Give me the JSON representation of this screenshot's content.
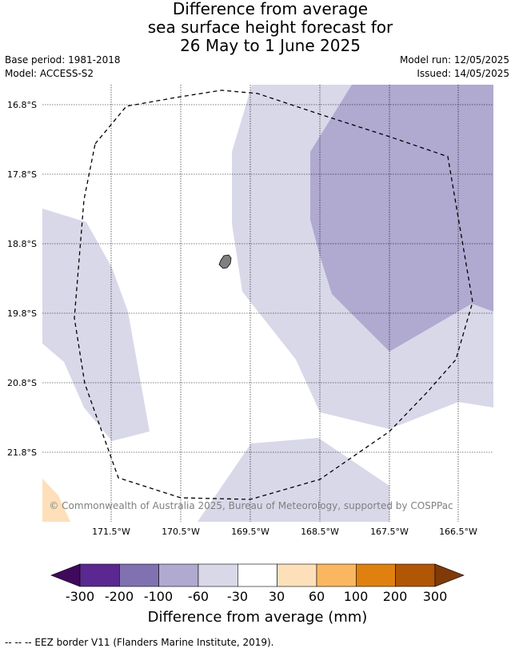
{
  "title": {
    "line1": "Difference from average",
    "line2": "sea surface height forecast for",
    "line3": "26 May to 1 June 2025"
  },
  "meta": {
    "base_period": "Base period: 1981-2018",
    "model": "Model: ACCESS-S2",
    "model_run": "Model run: 12/05/2025",
    "issued": "Issued: 14/05/2025"
  },
  "map": {
    "lat_labels": [
      "16.8°S",
      "17.8°S",
      "18.8°S",
      "19.8°S",
      "20.8°S",
      "21.8°S"
    ],
    "lon_labels": [
      "171.5°W",
      "170.5°W",
      "169.5°W",
      "168.5°W",
      "167.5°W",
      "166.5°W"
    ],
    "copyright": "© Commonwealth of Australia 2025, Bureau of Meteorology, supported by COSPPac",
    "colors": {
      "lt_minus30": "#d8d8e9",
      "lt_minus60": "#b0a9d0",
      "gt_plus30": "#fde0b9",
      "land": "#808080"
    }
  },
  "colorbar": {
    "title": "Difference from average (mm)",
    "ticks": [
      "-300",
      "-200",
      "-100",
      "-60",
      "-30",
      "30",
      "60",
      "100",
      "200",
      "300"
    ],
    "colors": [
      "#3f0a5c",
      "#5a2890",
      "#8071b1",
      "#b0a9d0",
      "#d8d8e9",
      "#ffffff",
      "#fde0b9",
      "#fbb760",
      "#e0810f",
      "#b15605",
      "#7f3a08"
    ]
  },
  "footer": "--  --  -- EEZ border V11 (Flanders Marine Institute, 2019)."
}
